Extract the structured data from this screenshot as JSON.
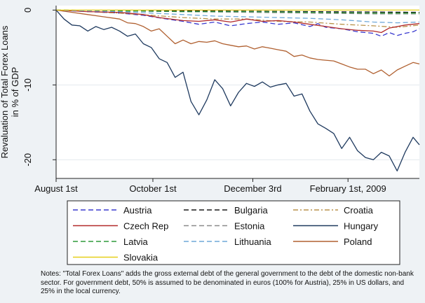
{
  "colors": {
    "background": "#eef2f5",
    "plot_background": "#ffffff",
    "grid": "#e3e9ee",
    "axis": "#222222"
  },
  "chart_data": {
    "type": "line",
    "title": "",
    "xlabel": "",
    "ylabel": "Revaluation of Total Forex Loans in % of GDP",
    "ylabel_lines": [
      "Revaluation of Total Forex Loans",
      "in % of GDP"
    ],
    "x_unit": "days since August 1st",
    "xlim": [
      0,
      229
    ],
    "ylim": [
      -22.5,
      0.6
    ],
    "y_ticks": [
      0,
      -10,
      -20
    ],
    "y_tick_labels": [
      "0",
      "-10",
      "-20"
    ],
    "x_ticks": [
      0,
      61,
      124,
      184
    ],
    "x_tick_labels": [
      "August 1st",
      "October 1st",
      "December 3rd",
      "February 1st, 2009"
    ],
    "grid": true,
    "legend_position": "bottom",
    "legend_columns": 3,
    "series": [
      {
        "name": "Austria",
        "color": "#3a3acf",
        "dash": "7,4",
        "x": [
          0,
          20,
          40,
          55,
          70,
          80,
          90,
          100,
          110,
          120,
          130,
          140,
          150,
          160,
          165,
          170,
          180,
          190,
          200,
          205,
          210,
          215,
          220,
          225,
          229
        ],
        "y": [
          0,
          -0.2,
          -0.4,
          -0.7,
          -1.2,
          -1.5,
          -1.9,
          -1.6,
          -2.1,
          -1.8,
          -1.6,
          -1.9,
          -1.7,
          -2.2,
          -1.8,
          -2.3,
          -2.5,
          -2.9,
          -3.1,
          -3.5,
          -3.0,
          -3.4,
          -3.1,
          -2.9,
          -2.5
        ]
      },
      {
        "name": "Bulgaria",
        "color": "#1a1a1a",
        "dash": "7,4",
        "x": [
          0,
          40,
          80,
          120,
          160,
          200,
          229
        ],
        "y": [
          0,
          -0.05,
          -0.1,
          -0.15,
          -0.2,
          -0.25,
          -0.3
        ]
      },
      {
        "name": "Croatia",
        "color": "#b8924a",
        "dash": "7,3,2,3",
        "x": [
          0,
          20,
          40,
          60,
          80,
          100,
          120,
          140,
          160,
          180,
          200,
          215,
          229
        ],
        "y": [
          0,
          -0.2,
          -0.4,
          -0.7,
          -1.0,
          -1.2,
          -1.2,
          -1.5,
          -1.6,
          -1.9,
          -2.1,
          -2.3,
          -2.0
        ]
      },
      {
        "name": "Czech Rep",
        "color": "#b22a2a",
        "dash": "",
        "x": [
          0,
          20,
          40,
          55,
          65,
          80,
          90,
          100,
          110,
          120,
          130,
          140,
          150,
          160,
          170,
          180,
          190,
          200,
          205,
          210,
          220,
          229
        ],
        "y": [
          0,
          -0.2,
          -0.3,
          -0.6,
          -1.0,
          -1.4,
          -1.5,
          -1.3,
          -1.6,
          -1.2,
          -1.5,
          -1.4,
          -1.6,
          -1.9,
          -2.2,
          -2.5,
          -2.7,
          -2.8,
          -3.0,
          -2.4,
          -2.0,
          -1.8
        ]
      },
      {
        "name": "Estonia",
        "color": "#8a8a8a",
        "dash": "7,4",
        "x": [
          0,
          40,
          80,
          120,
          160,
          200,
          229
        ],
        "y": [
          0,
          -0.1,
          -0.2,
          -0.3,
          -0.4,
          -0.5,
          -0.5
        ]
      },
      {
        "name": "Hungary",
        "color": "#1f3a5f",
        "dash": "",
        "x": [
          0,
          5,
          10,
          15,
          20,
          25,
          30,
          35,
          40,
          45,
          50,
          55,
          60,
          65,
          70,
          75,
          80,
          85,
          90,
          95,
          100,
          105,
          110,
          115,
          120,
          125,
          130,
          135,
          140,
          145,
          150,
          155,
          160,
          165,
          170,
          175,
          180,
          185,
          190,
          195,
          200,
          205,
          210,
          215,
          220,
          225,
          229
        ],
        "y": [
          0,
          -1.2,
          -2.0,
          -2.1,
          -2.8,
          -2.2,
          -2.6,
          -2.3,
          -2.8,
          -3.5,
          -3.2,
          -4.5,
          -5.0,
          -6.5,
          -7.0,
          -9.0,
          -8.3,
          -12.2,
          -14.0,
          -12.0,
          -9.3,
          -10.5,
          -12.8,
          -11.0,
          -9.8,
          -10.2,
          -9.6,
          -10.3,
          -10.0,
          -9.8,
          -11.5,
          -11.2,
          -13.5,
          -15.2,
          -15.8,
          -16.5,
          -18.5,
          -17.0,
          -18.8,
          -19.7,
          -20.0,
          -19.0,
          -19.5,
          -21.5,
          -19.0,
          -17.0,
          -18.0
        ]
      },
      {
        "name": "Latvia",
        "color": "#2e9a3a",
        "dash": "7,4",
        "x": [
          0,
          40,
          80,
          120,
          160,
          200,
          229
        ],
        "y": [
          0,
          -0.1,
          -0.2,
          -0.2,
          -0.3,
          -0.4,
          -0.4
        ]
      },
      {
        "name": "Lithuania",
        "color": "#6fa8d8",
        "dash": "7,4",
        "x": [
          0,
          20,
          40,
          60,
          80,
          100,
          120,
          140,
          160,
          180,
          200,
          215,
          229
        ],
        "y": [
          0,
          -0.1,
          -0.2,
          -0.4,
          -0.6,
          -0.8,
          -0.9,
          -1.0,
          -1.1,
          -1.3,
          -1.6,
          -1.7,
          -1.6
        ]
      },
      {
        "name": "Poland",
        "color": "#b06030",
        "dash": "",
        "x": [
          0,
          10,
          20,
          30,
          40,
          45,
          50,
          55,
          60,
          65,
          70,
          75,
          80,
          85,
          90,
          95,
          100,
          105,
          110,
          115,
          120,
          125,
          130,
          135,
          140,
          145,
          150,
          155,
          160,
          165,
          170,
          175,
          180,
          185,
          190,
          195,
          200,
          205,
          210,
          215,
          220,
          225,
          229
        ],
        "y": [
          0,
          -0.3,
          -0.6,
          -0.9,
          -1.2,
          -1.7,
          -1.8,
          -2.2,
          -2.8,
          -2.5,
          -3.5,
          -4.5,
          -4.0,
          -4.5,
          -4.2,
          -4.3,
          -4.1,
          -4.5,
          -4.7,
          -4.9,
          -4.8,
          -5.2,
          -4.9,
          -5.1,
          -5.3,
          -5.5,
          -6.2,
          -6.0,
          -6.4,
          -6.6,
          -6.7,
          -6.8,
          -7.2,
          -7.6,
          -7.9,
          -7.9,
          -8.5,
          -8.0,
          -8.8,
          -8.0,
          -7.5,
          -7.0,
          -7.2
        ]
      },
      {
        "name": "Slovakia",
        "color": "#e6cf1a",
        "dash": "",
        "x": [
          0,
          229
        ],
        "y": [
          0,
          0
        ]
      }
    ]
  },
  "note": "Notes: \"Total Forex Loans\" adds the gross external debt of the general government to the debt of the domestic non-bank sector. For government debt, 50% is assumed to be denominated in euros (100% for Austria), 25% in US dollars, and 25% in the local currency."
}
